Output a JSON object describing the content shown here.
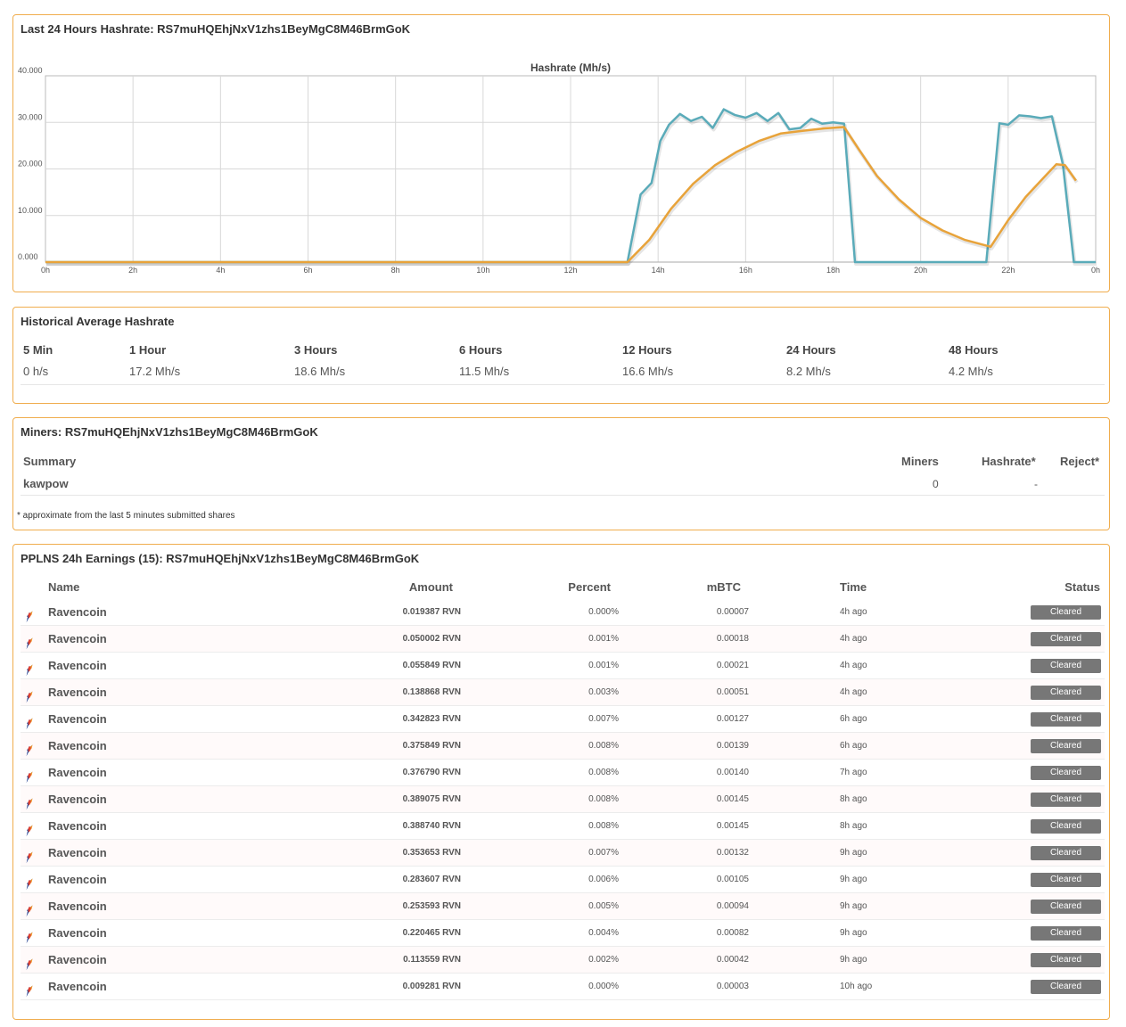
{
  "hashrate_panel": {
    "title": "Last 24 Hours Hashrate: RS7muHQEhjNxV1zhs1BeyMgC8M46BrmGoK"
  },
  "chart_data": {
    "type": "line",
    "title": "Hashrate (Mh/s)",
    "xlabel": "",
    "ylabel": "",
    "xlim": [
      0,
      24
    ],
    "ylim": [
      0,
      40
    ],
    "x_tick_labels": [
      "0h",
      "2h",
      "4h",
      "6h",
      "8h",
      "10h",
      "12h",
      "14h",
      "16h",
      "18h",
      "20h",
      "22h",
      "0h"
    ],
    "y_tick_labels": [
      "0.000",
      "10.000",
      "20.000",
      "30.000",
      "40.000"
    ],
    "grid": true,
    "colors": {
      "current": "#5aabb9",
      "average": "#e8a33a"
    },
    "series": [
      {
        "key": "current",
        "x": [
          0,
          13.3,
          13.6,
          13.85,
          14.05,
          14.25,
          14.5,
          14.75,
          15.0,
          15.25,
          15.5,
          15.75,
          16.0,
          16.25,
          16.5,
          16.75,
          17.0,
          17.25,
          17.5,
          17.75,
          18.0,
          18.25,
          18.5,
          21.5,
          21.8,
          22.0,
          22.25,
          22.5,
          22.75,
          23.0,
          23.25,
          23.5,
          24
        ],
        "y": [
          0,
          0,
          14.5,
          17.0,
          26.0,
          29.5,
          31.8,
          30.3,
          31.2,
          28.8,
          32.8,
          31.6,
          31.0,
          32.0,
          30.3,
          32.0,
          28.5,
          28.8,
          30.8,
          29.7,
          30.0,
          29.7,
          0,
          0,
          29.8,
          29.5,
          31.5,
          31.3,
          30.9,
          31.3,
          21.0,
          0,
          0
        ]
      },
      {
        "key": "average",
        "x": [
          0,
          13.3,
          13.8,
          14.3,
          14.8,
          15.3,
          15.8,
          16.3,
          16.8,
          17.3,
          17.8,
          18.25,
          18.6,
          19.0,
          19.5,
          20.0,
          20.5,
          21.0,
          21.6,
          22.0,
          22.4,
          22.8,
          23.1,
          23.3,
          23.55
        ],
        "y": [
          0,
          0,
          4.8,
          11.5,
          16.8,
          20.8,
          23.7,
          26.0,
          27.6,
          28.2,
          28.7,
          29.0,
          24.0,
          18.5,
          13.5,
          9.5,
          6.8,
          4.8,
          3.3,
          9.0,
          14.0,
          18.0,
          21.0,
          20.8,
          17.5
        ]
      }
    ]
  },
  "averages_panel": {
    "title": "Historical Average Hashrate",
    "columns": [
      {
        "label": "5 Min",
        "value": "0 h/s"
      },
      {
        "label": "1 Hour",
        "value": "17.2 Mh/s"
      },
      {
        "label": "3 Hours",
        "value": "18.6 Mh/s"
      },
      {
        "label": "6 Hours",
        "value": "11.5 Mh/s"
      },
      {
        "label": "12 Hours",
        "value": "16.6 Mh/s"
      },
      {
        "label": "24 Hours",
        "value": "8.2 Mh/s"
      },
      {
        "label": "48 Hours",
        "value": "4.2 Mh/s"
      }
    ]
  },
  "miners_panel": {
    "title": "Miners: RS7muHQEhjNxV1zhs1BeyMgC8M46BrmGoK",
    "headers": {
      "summary": "Summary",
      "miners": "Miners",
      "hashrate": "Hashrate*",
      "reject": "Reject*"
    },
    "row": {
      "algo": "kawpow",
      "miners": "0",
      "hashrate": "-",
      "reject": ""
    },
    "note": "* approximate from the last 5 minutes submitted shares"
  },
  "earnings_panel": {
    "title": "PPLNS 24h Earnings (15): RS7muHQEhjNxV1zhs1BeyMgC8M46BrmGoK",
    "headers": {
      "name": "Name",
      "amount": "Amount",
      "percent": "Percent",
      "mbtc": "mBTC",
      "time": "Time",
      "status": "Status"
    },
    "rows": [
      {
        "name": "Ravencoin",
        "amount": "0.019387 RVN",
        "percent": "0.000%",
        "mbtc": "0.00007",
        "time": "4h ago",
        "status": "Cleared"
      },
      {
        "name": "Ravencoin",
        "amount": "0.050002 RVN",
        "percent": "0.001%",
        "mbtc": "0.00018",
        "time": "4h ago",
        "status": "Cleared"
      },
      {
        "name": "Ravencoin",
        "amount": "0.055849 RVN",
        "percent": "0.001%",
        "mbtc": "0.00021",
        "time": "4h ago",
        "status": "Cleared"
      },
      {
        "name": "Ravencoin",
        "amount": "0.138868 RVN",
        "percent": "0.003%",
        "mbtc": "0.00051",
        "time": "4h ago",
        "status": "Cleared"
      },
      {
        "name": "Ravencoin",
        "amount": "0.342823 RVN",
        "percent": "0.007%",
        "mbtc": "0.00127",
        "time": "6h ago",
        "status": "Cleared"
      },
      {
        "name": "Ravencoin",
        "amount": "0.375849 RVN",
        "percent": "0.008%",
        "mbtc": "0.00139",
        "time": "6h ago",
        "status": "Cleared"
      },
      {
        "name": "Ravencoin",
        "amount": "0.376790 RVN",
        "percent": "0.008%",
        "mbtc": "0.00140",
        "time": "7h ago",
        "status": "Cleared"
      },
      {
        "name": "Ravencoin",
        "amount": "0.389075 RVN",
        "percent": "0.008%",
        "mbtc": "0.00145",
        "time": "8h ago",
        "status": "Cleared"
      },
      {
        "name": "Ravencoin",
        "amount": "0.388740 RVN",
        "percent": "0.008%",
        "mbtc": "0.00145",
        "time": "8h ago",
        "status": "Cleared"
      },
      {
        "name": "Ravencoin",
        "amount": "0.353653 RVN",
        "percent": "0.007%",
        "mbtc": "0.00132",
        "time": "9h ago",
        "status": "Cleared"
      },
      {
        "name": "Ravencoin",
        "amount": "0.283607 RVN",
        "percent": "0.006%",
        "mbtc": "0.00105",
        "time": "9h ago",
        "status": "Cleared"
      },
      {
        "name": "Ravencoin",
        "amount": "0.253593 RVN",
        "percent": "0.005%",
        "mbtc": "0.00094",
        "time": "9h ago",
        "status": "Cleared"
      },
      {
        "name": "Ravencoin",
        "amount": "0.220465 RVN",
        "percent": "0.004%",
        "mbtc": "0.00082",
        "time": "9h ago",
        "status": "Cleared"
      },
      {
        "name": "Ravencoin",
        "amount": "0.113559 RVN",
        "percent": "0.002%",
        "mbtc": "0.00042",
        "time": "9h ago",
        "status": "Cleared"
      },
      {
        "name": "Ravencoin",
        "amount": "0.009281 RVN",
        "percent": "0.000%",
        "mbtc": "0.00003",
        "time": "10h ago",
        "status": "Cleared"
      }
    ]
  }
}
